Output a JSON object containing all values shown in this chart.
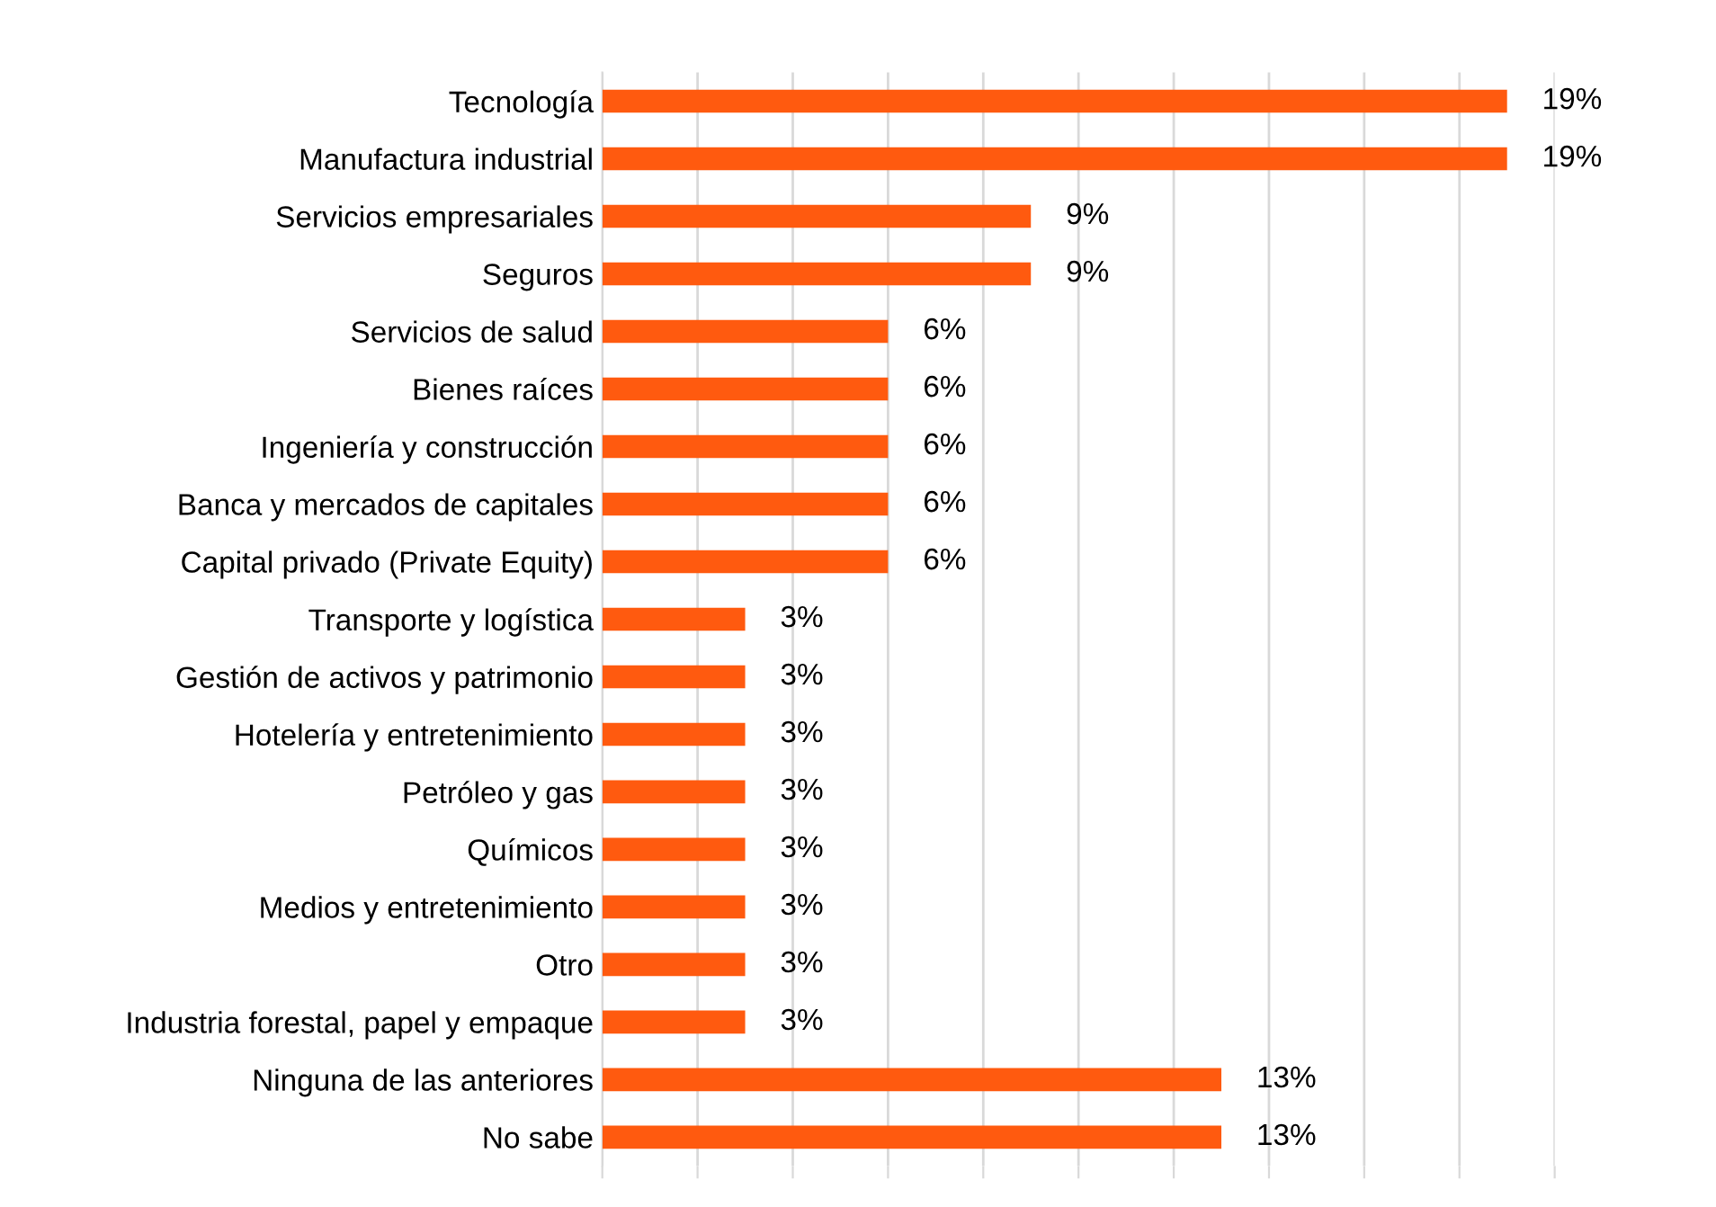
{
  "chart_data": {
    "type": "bar",
    "orientation": "horizontal",
    "categories": [
      "Tecnología",
      "Manufactura industrial",
      "Servicios empresariales",
      "Seguros",
      "Servicios de salud",
      "Bienes raíces",
      "Ingeniería y construcción",
      "Banca y mercados de capitales",
      "Capital privado (Private Equity)",
      "Transporte y logística",
      "Gestión de activos y patrimonio",
      "Hotelería y entretenimiento",
      "Petróleo y gas",
      "Químicos",
      "Medios y entretenimiento",
      "Otro",
      "Industria forestal, papel y empaque",
      "Ninguna de las anteriores",
      "No sabe"
    ],
    "values": [
      19,
      19,
      9,
      9,
      6,
      6,
      6,
      6,
      6,
      3,
      3,
      3,
      3,
      3,
      3,
      3,
      3,
      13,
      13
    ],
    "value_labels": [
      "19%",
      "19%",
      "9%",
      "9%",
      "6%",
      "6%",
      "6%",
      "6%",
      "6%",
      "3%",
      "3%",
      "3%",
      "3%",
      "3%",
      "3%",
      "3%",
      "3%",
      "13%",
      "13%"
    ],
    "color": "#ff5a0f",
    "xlim": [
      0,
      20
    ],
    "xticks": [
      {
        "value": 0,
        "label": null
      },
      {
        "value": 2,
        "label": null
      },
      {
        "value": 4,
        "label": null
      },
      {
        "value": 6,
        "label": null
      },
      {
        "value": 8,
        "label": null
      },
      {
        "value": 10,
        "label": null
      },
      {
        "value": 12,
        "label": null
      },
      {
        "value": 14,
        "label": null
      },
      {
        "value": 16,
        "label": null
      },
      {
        "value": 18,
        "label": null
      },
      {
        "value": 20,
        "label": null
      }
    ],
    "grid": "x",
    "tick_labels": "y",
    "legend": false
  }
}
